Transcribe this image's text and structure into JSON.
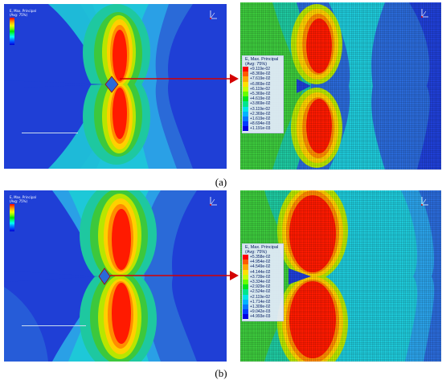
{
  "captions": {
    "a": "(a)",
    "b": "(b)"
  },
  "small_legend": {
    "title_a": "E, Max. Principal\n(Avg: 75%)",
    "title_b": "E, Max. Principal\n(Avg: 75%)"
  },
  "big_legend": {
    "a": {
      "title": "E, Max. Principal\n(Avg: 75%)",
      "values": [
        "+9.119e-02",
        "+8.369e-02",
        "+7.619e-02",
        "+6.869e-02",
        "+6.119e-02",
        "+5.369e-02",
        "+4.619e-02",
        "+3.869e-02",
        "+3.119e-02",
        "+2.369e-02",
        "+1.619e-02",
        "+8.694e-03",
        "+1.191e-03"
      ]
    },
    "b": {
      "title": "E, Max. Principal\n(Avg: 75%)",
      "values": [
        "+5.358e-02",
        "+4.954e-02",
        "+4.549e-02",
        "+4.144e-02",
        "+3.739e-02",
        "+3.334e-02",
        "+2.929e-02",
        "+2.524e-02",
        "+2.119e-02",
        "+1.714e-02",
        "+1.309e-02",
        "+9.042e-03",
        "+4.993e-03"
      ]
    }
  },
  "legend_colors": [
    "#ff0000",
    "#ff5a00",
    "#ffa800",
    "#ffe000",
    "#c8ff00",
    "#66ff00",
    "#00e61e",
    "#00e68c",
    "#00e6e6",
    "#00b4ff",
    "#0078ff",
    "#003cff",
    "#0000e0"
  ],
  "field_colors": {
    "red": "#ff1a00",
    "orange": "#ff8c00",
    "yellow": "#ffd000",
    "lime": "#b8e600",
    "green": "#3cc83c",
    "teal": "#1ec8a0",
    "cyan": "#1ec8d8",
    "sky": "#2aa0e6",
    "blue": "#2a6ad8",
    "deep": "#1f3fd6"
  },
  "arrow_color": "#d40000"
}
